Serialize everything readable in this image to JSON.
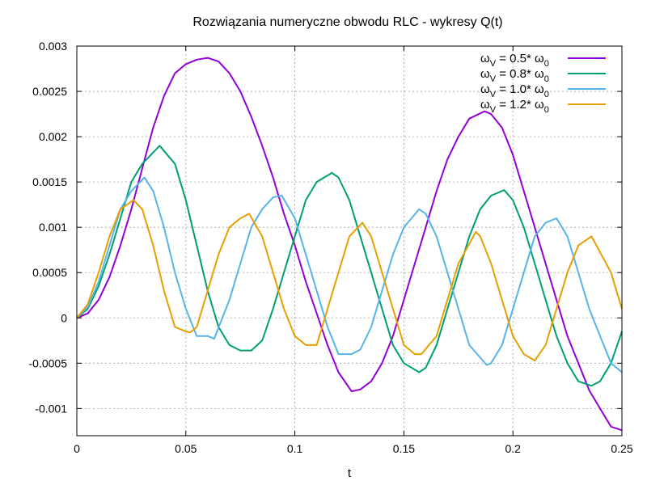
{
  "chart_data": {
    "type": "line",
    "title": "Rozwiązania numeryczne obwodu RLC - wykresy Q(t)",
    "xlabel": "t",
    "ylabel": "",
    "xlim": [
      0,
      0.25
    ],
    "ylim": [
      -0.0013,
      0.003
    ],
    "grid": true,
    "legend_position": "top-right",
    "x_ticks": [
      {
        "value": 0,
        "label": "0"
      },
      {
        "value": 0.05,
        "label": "0.05"
      },
      {
        "value": 0.1,
        "label": "0.1"
      },
      {
        "value": 0.15,
        "label": "0.15"
      },
      {
        "value": 0.2,
        "label": "0.2"
      },
      {
        "value": 0.25,
        "label": "0.25"
      }
    ],
    "y_ticks": [
      {
        "value": 0.003,
        "label": "0.003"
      },
      {
        "value": 0.0025,
        "label": "0.0025"
      },
      {
        "value": 0.002,
        "label": "0.002"
      },
      {
        "value": 0.0015,
        "label": "0.0015"
      },
      {
        "value": 0.001,
        "label": "0.001"
      },
      {
        "value": 0.0005,
        "label": "0.0005"
      },
      {
        "value": 0,
        "label": "0"
      },
      {
        "value": -0.0005,
        "label": "-0.0005"
      },
      {
        "value": -0.001,
        "label": "-0.001"
      }
    ],
    "series": [
      {
        "name": "ωV = 0.5* ω0",
        "legend": {
          "sym": "ω",
          "sub": "V",
          "mid": " = 0.5* ",
          "sym2": "ω",
          "sub2": "0"
        },
        "color": "#9400d3",
        "x": [
          0,
          0.005,
          0.01,
          0.015,
          0.02,
          0.025,
          0.03,
          0.035,
          0.04,
          0.045,
          0.05,
          0.055,
          0.06,
          0.065,
          0.07,
          0.075,
          0.08,
          0.085,
          0.09,
          0.095,
          0.1,
          0.105,
          0.11,
          0.115,
          0.12,
          0.126,
          0.13,
          0.135,
          0.14,
          0.145,
          0.15,
          0.155,
          0.16,
          0.165,
          0.17,
          0.175,
          0.18,
          0.187,
          0.19,
          0.195,
          0.2,
          0.205,
          0.21,
          0.215,
          0.22,
          0.225,
          0.23,
          0.235,
          0.24,
          0.245,
          0.25
        ],
        "y": [
          0,
          5e-05,
          0.0002,
          0.00045,
          0.0008,
          0.0012,
          0.00165,
          0.0021,
          0.00245,
          0.0027,
          0.0028,
          0.00285,
          0.00287,
          0.00283,
          0.0027,
          0.0025,
          0.00222,
          0.0019,
          0.00155,
          0.00115,
          0.0008,
          0.0004,
          5e-05,
          -0.0003,
          -0.0006,
          -0.00081,
          -0.00079,
          -0.0007,
          -0.0005,
          -0.0002,
          0.0002,
          0.0006,
          0.001,
          0.0014,
          0.00175,
          0.002,
          0.0022,
          0.00228,
          0.00225,
          0.0021,
          0.0018,
          0.0014,
          0.001,
          0.0006,
          0.0002,
          -0.0002,
          -0.0005,
          -0.0008,
          -0.001,
          -0.0012,
          -0.00124
        ]
      },
      {
        "name": "ωV = 0.8* ω0",
        "legend": {
          "sym": "ω",
          "sub": "V",
          "mid": " = 0.8* ",
          "sym2": "ω",
          "sub2": "0"
        },
        "color": "#009e73",
        "x": [
          0,
          0.005,
          0.01,
          0.015,
          0.02,
          0.025,
          0.03,
          0.038,
          0.045,
          0.05,
          0.055,
          0.06,
          0.065,
          0.07,
          0.075,
          0.08,
          0.08,
          0.085,
          0.09,
          0.095,
          0.1,
          0.105,
          0.11,
          0.117,
          0.12,
          0.125,
          0.13,
          0.135,
          0.14,
          0.145,
          0.15,
          0.157,
          0.16,
          0.165,
          0.17,
          0.175,
          0.18,
          0.185,
          0.19,
          0.196,
          0.2,
          0.205,
          0.21,
          0.215,
          0.22,
          0.225,
          0.23,
          0.236,
          0.24,
          0.245,
          0.25
        ],
        "y": [
          0,
          0.0001,
          0.00035,
          0.0007,
          0.0011,
          0.0015,
          0.0017,
          0.0019,
          0.0017,
          0.0013,
          0.0008,
          0.0003,
          -0.0001,
          -0.0003,
          -0.00036,
          -0.00036,
          -0.00036,
          -0.00025,
          0.0001,
          0.0005,
          0.0009,
          0.0013,
          0.0015,
          0.0016,
          0.00155,
          0.0013,
          0.0009,
          0.0005,
          0.0001,
          -0.0003,
          -0.0005,
          -0.0006,
          -0.00055,
          -0.0003,
          0.0001,
          0.0005,
          0.0009,
          0.0012,
          0.00135,
          0.00141,
          0.0013,
          0.001,
          0.0006,
          0.0002,
          -0.0002,
          -0.0005,
          -0.0007,
          -0.00075,
          -0.0007,
          -0.0005,
          -0.00015
        ]
      },
      {
        "name": "ωV = 1.0* ω0",
        "legend": {
          "sym": "ω",
          "sub": "V",
          "mid": " = 1.0* ",
          "sym2": "ω",
          "sub2": "0"
        },
        "color": "#56b4e9",
        "x": [
          0,
          0.005,
          0.01,
          0.015,
          0.02,
          0.025,
          0.031,
          0.035,
          0.04,
          0.045,
          0.05,
          0.055,
          0.06,
          0.063,
          0.07,
          0.075,
          0.08,
          0.085,
          0.09,
          0.094,
          0.1,
          0.105,
          0.11,
          0.115,
          0.12,
          0.126,
          0.13,
          0.135,
          0.14,
          0.145,
          0.15,
          0.157,
          0.16,
          0.165,
          0.17,
          0.175,
          0.18,
          0.188,
          0.19,
          0.195,
          0.2,
          0.205,
          0.21,
          0.215,
          0.22,
          0.225,
          0.23,
          0.235,
          0.24,
          0.245,
          0.25
        ],
        "y": [
          0,
          0.00012,
          0.0004,
          0.0008,
          0.0012,
          0.0014,
          0.00155,
          0.0014,
          0.001,
          0.0005,
          0.0001,
          -0.0002,
          -0.0002,
          -0.00023,
          0.0002,
          0.0006,
          0.001,
          0.0012,
          0.00133,
          0.00135,
          0.0011,
          0.0007,
          0.0003,
          -0.0001,
          -0.0004,
          -0.0004,
          -0.00035,
          -0.0001,
          0.0003,
          0.0007,
          0.001,
          0.0012,
          0.00115,
          0.0009,
          0.0005,
          0.0001,
          -0.0003,
          -0.00052,
          -0.0005,
          -0.0003,
          0.0001,
          0.0005,
          0.0009,
          0.00105,
          0.0011,
          0.0009,
          0.0005,
          0.0001,
          -0.0002,
          -0.0005,
          -0.0006
        ]
      },
      {
        "name": "ωV = 1.2* ω0",
        "legend": {
          "sym": "ω",
          "sub": "V",
          "mid": " = 1.2* ",
          "sym2": "ω",
          "sub2": "0"
        },
        "color": "#e69f00",
        "x": [
          0,
          0.005,
          0.01,
          0.015,
          0.02,
          0.026,
          0.03,
          0.035,
          0.04,
          0.045,
          0.05,
          0.052,
          0.055,
          0.06,
          0.065,
          0.07,
          0.075,
          0.079,
          0.085,
          0.09,
          0.095,
          0.1,
          0.105,
          0.11,
          0.115,
          0.12,
          0.125,
          0.131,
          0.135,
          0.14,
          0.145,
          0.15,
          0.155,
          0.158,
          0.165,
          0.17,
          0.175,
          0.183,
          0.185,
          0.19,
          0.195,
          0.2,
          0.205,
          0.21,
          0.215,
          0.22,
          0.225,
          0.23,
          0.236,
          0.245,
          0.25
        ],
        "y": [
          0,
          0.00015,
          0.0005,
          0.0009,
          0.0012,
          0.0013,
          0.0012,
          0.0008,
          0.0003,
          -0.0001,
          -0.00015,
          -0.00016,
          -0.0001,
          0.0003,
          0.0007,
          0.001,
          0.0011,
          0.00115,
          0.0009,
          0.0005,
          0.0001,
          -0.0002,
          -0.0003,
          -0.0003,
          0.0001,
          0.0005,
          0.0009,
          0.00105,
          0.0009,
          0.0005,
          0.0001,
          -0.0003,
          -0.0004,
          -0.0004,
          -0.0002,
          0.0002,
          0.0006,
          0.00095,
          0.0009,
          0.0006,
          0.0002,
          -0.0002,
          -0.0004,
          -0.00047,
          -0.0003,
          0.0001,
          0.0005,
          0.0008,
          0.0009,
          0.0005,
          0.0001
        ]
      }
    ]
  }
}
